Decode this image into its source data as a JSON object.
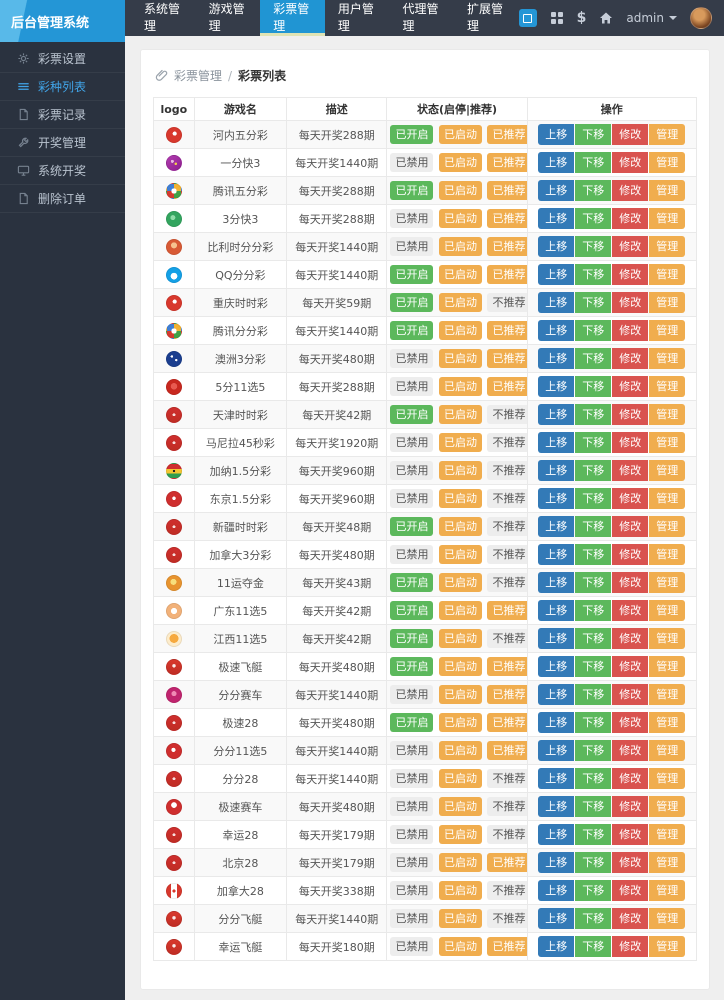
{
  "header": {
    "brand": "后台管理系统",
    "nav": [
      {
        "label": "系统管理",
        "active": false
      },
      {
        "label": "游戏管理",
        "active": false
      },
      {
        "label": "彩票管理",
        "active": true
      },
      {
        "label": "用户管理",
        "active": false
      },
      {
        "label": "代理管理",
        "active": false
      },
      {
        "label": "扩展管理",
        "active": false
      }
    ],
    "tools": [
      "app-icon",
      "grid-icon",
      "dollar-icon",
      "home-icon"
    ],
    "user": {
      "name": "admin"
    }
  },
  "sidebar": {
    "items": [
      {
        "label": "彩票设置",
        "icon": "gear-icon",
        "active": false
      },
      {
        "label": "彩种列表",
        "icon": "list-icon",
        "active": true
      },
      {
        "label": "彩票记录",
        "icon": "file-icon",
        "active": false
      },
      {
        "label": "开奖管理",
        "icon": "wrench-icon",
        "active": false
      },
      {
        "label": "系统开奖",
        "icon": "monitor-icon",
        "active": false
      },
      {
        "label": "删除订单",
        "icon": "file-icon",
        "active": false
      }
    ]
  },
  "breadcrumb": {
    "section": "彩票管理",
    "separator": "/",
    "page": "彩票列表"
  },
  "colors": {
    "header_bg": "#353C49",
    "sidebar_bg": "#2A323F",
    "accent_blue": "#2095D3",
    "active_tab_underline": "#DFE3B4",
    "primary": "#337AB7",
    "success": "#5CB85C",
    "danger": "#D9534F",
    "warning": "#F0AD4E",
    "disabled_badge": "#EDEDED"
  },
  "table": {
    "columns": [
      "logo",
      "游戏名",
      "描述",
      "状态(启停|推荐)",
      "操作"
    ],
    "col_widths": [
      "7.5%",
      "17%",
      "18.5%",
      "25.8%",
      "31.2%"
    ],
    "actions": [
      "上移",
      "下移",
      "修改",
      "管理"
    ],
    "action_styles": [
      "primary",
      "success",
      "danger",
      "warning"
    ],
    "rows": [
      {
        "name": "河内五分彩",
        "desc": "每天开奖288期",
        "power": {
          "label": "已开启",
          "style": "success"
        },
        "run": {
          "label": "已启动",
          "style": "warning"
        },
        "rec": {
          "label": "已推荐",
          "style": "warning"
        },
        "logo": "radial-gradient(circle at 55% 40%, #fff 0 17%, #D8382D 19%)"
      },
      {
        "name": "一分快3",
        "desc": "每天开奖1440期",
        "power": {
          "label": "已禁用",
          "style": "default"
        },
        "run": {
          "label": "已启动",
          "style": "warning"
        },
        "rec": {
          "label": "已推荐",
          "style": "warning"
        },
        "logo": "radial-gradient(circle at 38% 38%, #E8B6E0 0 12%, transparent 13%), radial-gradient(circle at 63% 56%, #F3D04A 0 10%, transparent 11%), linear-gradient(140deg, #B13BB0, #8E1F8E)"
      },
      {
        "name": "腾讯五分彩",
        "desc": "每天开奖288期",
        "power": {
          "label": "已开启",
          "style": "success"
        },
        "run": {
          "label": "已启动",
          "style": "warning"
        },
        "rec": {
          "label": "已推荐",
          "style": "warning"
        },
        "logo": "radial-gradient(circle at 50% 50%, #fff 0 26%, transparent 28%), conic-gradient(#F2B234 0 25%, #42A047 25% 50%, #D63A2F 50% 75%, #3F7FD6 75%)"
      },
      {
        "name": "3分快3",
        "desc": "每天开奖288期",
        "power": {
          "label": "已禁用",
          "style": "default"
        },
        "run": {
          "label": "已启动",
          "style": "warning"
        },
        "rec": {
          "label": "已推荐",
          "style": "warning"
        },
        "logo": "radial-gradient(circle at 42% 40%, #8FDCA8 0 20%, #33A55F 22%)"
      },
      {
        "name": "比利时分分彩",
        "desc": "每天开奖1440期",
        "power": {
          "label": "已禁用",
          "style": "default"
        },
        "run": {
          "label": "已启动",
          "style": "warning"
        },
        "rec": {
          "label": "已推荐",
          "style": "warning"
        },
        "logo": "radial-gradient(circle at 50% 38%, #F6C28F 0 26%, #D85A35 28%)"
      },
      {
        "name": "QQ分分彩",
        "desc": "每天开奖1440期",
        "power": {
          "label": "已开启",
          "style": "success"
        },
        "run": {
          "label": "已启动",
          "style": "warning"
        },
        "rec": {
          "label": "已推荐",
          "style": "warning"
        },
        "logo": "radial-gradient(circle at 50% 58%, #fff 0 30%, #14A0E6 32%)"
      },
      {
        "name": "重庆时时彩",
        "desc": "每天开奖59期",
        "power": {
          "label": "已开启",
          "style": "success"
        },
        "run": {
          "label": "已启动",
          "style": "warning"
        },
        "rec": {
          "label": "不推荐",
          "style": "default"
        },
        "logo": "radial-gradient(circle at 55% 40%, #fff 0 17%, #D8382D 19%)"
      },
      {
        "name": "腾讯分分彩",
        "desc": "每天开奖1440期",
        "power": {
          "label": "已开启",
          "style": "success"
        },
        "run": {
          "label": "已启动",
          "style": "warning"
        },
        "rec": {
          "label": "已推荐",
          "style": "warning"
        },
        "logo": "radial-gradient(circle at 50% 50%, #fff 0 26%, transparent 28%), conic-gradient(#F2B234 0 25%, #42A047 25% 50%, #D63A2F 50% 75%, #3F7FD6 75%)"
      },
      {
        "name": "澳洲3分彩",
        "desc": "每天开奖480期",
        "power": {
          "label": "已禁用",
          "style": "default"
        },
        "run": {
          "label": "已启动",
          "style": "warning"
        },
        "rec": {
          "label": "已推荐",
          "style": "warning"
        },
        "logo": "radial-gradient(circle at 35% 32%, #fff 0 9%, transparent 10%), radial-gradient(circle at 66% 58%, #fff 0 9%, transparent 10%), linear-gradient(#1B3E8F, #1B3E8F)"
      },
      {
        "name": "5分11选5",
        "desc": "每天开奖288期",
        "power": {
          "label": "已禁用",
          "style": "default"
        },
        "run": {
          "label": "已启动",
          "style": "warning"
        },
        "rec": {
          "label": "已推荐",
          "style": "warning"
        },
        "logo": "radial-gradient(circle at 50% 45%, #E85A50 0 30%, #C8281F 32%)"
      },
      {
        "name": "天津时时彩",
        "desc": "每天开奖42期",
        "power": {
          "label": "已开启",
          "style": "success"
        },
        "run": {
          "label": "已启动",
          "style": "warning"
        },
        "rec": {
          "label": "不推荐",
          "style": "default"
        },
        "logo": "radial-gradient(circle at 50% 48%, rgba(255,255,255,.85) 0 14%, transparent 15%), linear-gradient(#CF2E2E, #C02D24)"
      },
      {
        "name": "马尼拉45秒彩",
        "desc": "每天开奖1920期",
        "power": {
          "label": "已禁用",
          "style": "default"
        },
        "run": {
          "label": "已启动",
          "style": "warning"
        },
        "rec": {
          "label": "不推荐",
          "style": "default"
        },
        "logo": "radial-gradient(circle at 50% 48%, rgba(255,255,255,.85) 0 14%, transparent 15%), linear-gradient(#CF2E2E, #C02D24)"
      },
      {
        "name": "加纳1.5分彩",
        "desc": "每天开奖960期",
        "power": {
          "label": "已禁用",
          "style": "default"
        },
        "run": {
          "label": "已启动",
          "style": "warning"
        },
        "rec": {
          "label": "不推荐",
          "style": "default"
        },
        "logo": "radial-gradient(circle at 50% 50%, #222 0 12%, transparent 13%), linear-gradient(180deg, #CF2E2E 0 34%, #F3C530 34% 67%, #2F9E4F 67%)"
      },
      {
        "name": "东京1.5分彩",
        "desc": "每天开奖960期",
        "power": {
          "label": "已禁用",
          "style": "default"
        },
        "run": {
          "label": "已启动",
          "style": "warning"
        },
        "rec": {
          "label": "不推荐",
          "style": "default"
        },
        "logo": "radial-gradient(circle at 50% 45%, #fff 0 16%, #CF2E2E 18%)"
      },
      {
        "name": "新疆时时彩",
        "desc": "每天开奖48期",
        "power": {
          "label": "已开启",
          "style": "success"
        },
        "run": {
          "label": "已启动",
          "style": "warning"
        },
        "rec": {
          "label": "不推荐",
          "style": "default"
        },
        "logo": "radial-gradient(circle at 50% 48%, rgba(255,255,255,.85) 0 14%, transparent 15%), linear-gradient(#CF2E2E, #C02D24)"
      },
      {
        "name": "加拿大3分彩",
        "desc": "每天开奖480期",
        "power": {
          "label": "已禁用",
          "style": "default"
        },
        "run": {
          "label": "已启动",
          "style": "warning"
        },
        "rec": {
          "label": "不推荐",
          "style": "default"
        },
        "logo": "radial-gradient(circle at 50% 48%, rgba(255,255,255,.85) 0 14%, transparent 15%), linear-gradient(#CF2E2E, #C02D24)"
      },
      {
        "name": "11运夺金",
        "desc": "每天开奖43期",
        "power": {
          "label": "已开启",
          "style": "success"
        },
        "run": {
          "label": "已启动",
          "style": "warning"
        },
        "rec": {
          "label": "不推荐",
          "style": "default"
        },
        "logo": "radial-gradient(circle at 46% 42%, #F7DF7C 0 26%, #E8942F 28%)"
      },
      {
        "name": "广东11选5",
        "desc": "每天开奖42期",
        "power": {
          "label": "已开启",
          "style": "success"
        },
        "run": {
          "label": "已启动",
          "style": "warning"
        },
        "rec": {
          "label": "已推荐",
          "style": "warning"
        },
        "logo": "radial-gradient(circle at 50% 50%, #fff 0 30%, #F2B27A 32%)"
      },
      {
        "name": "江西11选5",
        "desc": "每天开奖42期",
        "power": {
          "label": "已开启",
          "style": "success"
        },
        "run": {
          "label": "已启动",
          "style": "warning"
        },
        "rec": {
          "label": "不推荐",
          "style": "default"
        },
        "logo": "radial-gradient(circle at 50% 46%, #F6A93F 0 42%, #FDECCB 44%)"
      },
      {
        "name": "极速飞艇",
        "desc": "每天开奖480期",
        "power": {
          "label": "已开启",
          "style": "success"
        },
        "run": {
          "label": "已启动",
          "style": "warning"
        },
        "rec": {
          "label": "已推荐",
          "style": "warning"
        },
        "logo": "radial-gradient(circle at 50% 42%, rgba(255,255,255,.9) 0 16%, transparent 17%), linear-gradient(#D8382D, #C02D24)"
      },
      {
        "name": "分分赛车",
        "desc": "每天开奖1440期",
        "power": {
          "label": "已禁用",
          "style": "default"
        },
        "run": {
          "label": "已启动",
          "style": "warning"
        },
        "rec": {
          "label": "已推荐",
          "style": "warning"
        },
        "logo": "radial-gradient(circle at 50% 40%, #EF8AB5 0 22%, #C0246E 24%)"
      },
      {
        "name": "极速28",
        "desc": "每天开奖480期",
        "power": {
          "label": "已开启",
          "style": "success"
        },
        "run": {
          "label": "已启动",
          "style": "warning"
        },
        "rec": {
          "label": "已推荐",
          "style": "warning"
        },
        "logo": "radial-gradient(circle at 50% 48%, rgba(255,255,255,.85) 0 14%, transparent 15%), linear-gradient(#CF2E2E, #C02D24)"
      },
      {
        "name": "分分11选5",
        "desc": "每天开奖1440期",
        "power": {
          "label": "已禁用",
          "style": "default"
        },
        "run": {
          "label": "已启动",
          "style": "warning"
        },
        "rec": {
          "label": "已推荐",
          "style": "warning"
        },
        "logo": "radial-gradient(circle at 46% 42%, #fff 0 18%, #CF2E2E 20%)"
      },
      {
        "name": "分分28",
        "desc": "每天开奖1440期",
        "power": {
          "label": "已禁用",
          "style": "default"
        },
        "run": {
          "label": "已启动",
          "style": "warning"
        },
        "rec": {
          "label": "不推荐",
          "style": "default"
        },
        "logo": "radial-gradient(circle at 50% 48%, rgba(255,255,255,.85) 0 14%, transparent 15%), linear-gradient(#CF2E2E, #C02D24)"
      },
      {
        "name": "极速赛车",
        "desc": "每天开奖480期",
        "power": {
          "label": "已禁用",
          "style": "default"
        },
        "run": {
          "label": "已启动",
          "style": "warning"
        },
        "rec": {
          "label": "不推荐",
          "style": "default"
        },
        "logo": "radial-gradient(circle at 50% 36%, #fff 0 24%, #CF2E2E 26%)"
      },
      {
        "name": "幸运28",
        "desc": "每天开奖179期",
        "power": {
          "label": "已禁用",
          "style": "default"
        },
        "run": {
          "label": "已启动",
          "style": "warning"
        },
        "rec": {
          "label": "不推荐",
          "style": "default"
        },
        "logo": "radial-gradient(circle at 50% 48%, rgba(255,255,255,.85) 0 14%, transparent 15%), linear-gradient(#CF2E2E, #C02D24)"
      },
      {
        "name": "北京28",
        "desc": "每天开奖179期",
        "power": {
          "label": "已禁用",
          "style": "default"
        },
        "run": {
          "label": "已启动",
          "style": "warning"
        },
        "rec": {
          "label": "已推荐",
          "style": "warning"
        },
        "logo": "radial-gradient(circle at 50% 48%, rgba(255,255,255,.85) 0 14%, transparent 15%), linear-gradient(#CF2E2E, #C02D24)"
      },
      {
        "name": "加拿大28",
        "desc": "每天开奖338期",
        "power": {
          "label": "已禁用",
          "style": "default"
        },
        "run": {
          "label": "已启动",
          "style": "warning"
        },
        "rec": {
          "label": "不推荐",
          "style": "default"
        },
        "logo": "radial-gradient(circle at 50% 50%, #D8382D 0 16%, transparent 17%), linear-gradient(90deg, #D8382D 0 28%, #fff 28% 72%, #D8382D 72%)"
      },
      {
        "name": "分分飞艇",
        "desc": "每天开奖1440期",
        "power": {
          "label": "已禁用",
          "style": "default"
        },
        "run": {
          "label": "已启动",
          "style": "warning"
        },
        "rec": {
          "label": "不推荐",
          "style": "default"
        },
        "logo": "radial-gradient(circle at 50% 42%, rgba(255,255,255,.9) 0 16%, transparent 17%), linear-gradient(#D8382D, #C02D24)"
      },
      {
        "name": "幸运飞艇",
        "desc": "每天开奖180期",
        "power": {
          "label": "已禁用",
          "style": "default"
        },
        "run": {
          "label": "已启动",
          "style": "warning"
        },
        "rec": {
          "label": "已推荐",
          "style": "warning"
        },
        "logo": "radial-gradient(circle at 50% 42%, rgba(255,255,255,.9) 0 16%, transparent 17%), linear-gradient(#D8382D, #C02D24)"
      }
    ]
  }
}
